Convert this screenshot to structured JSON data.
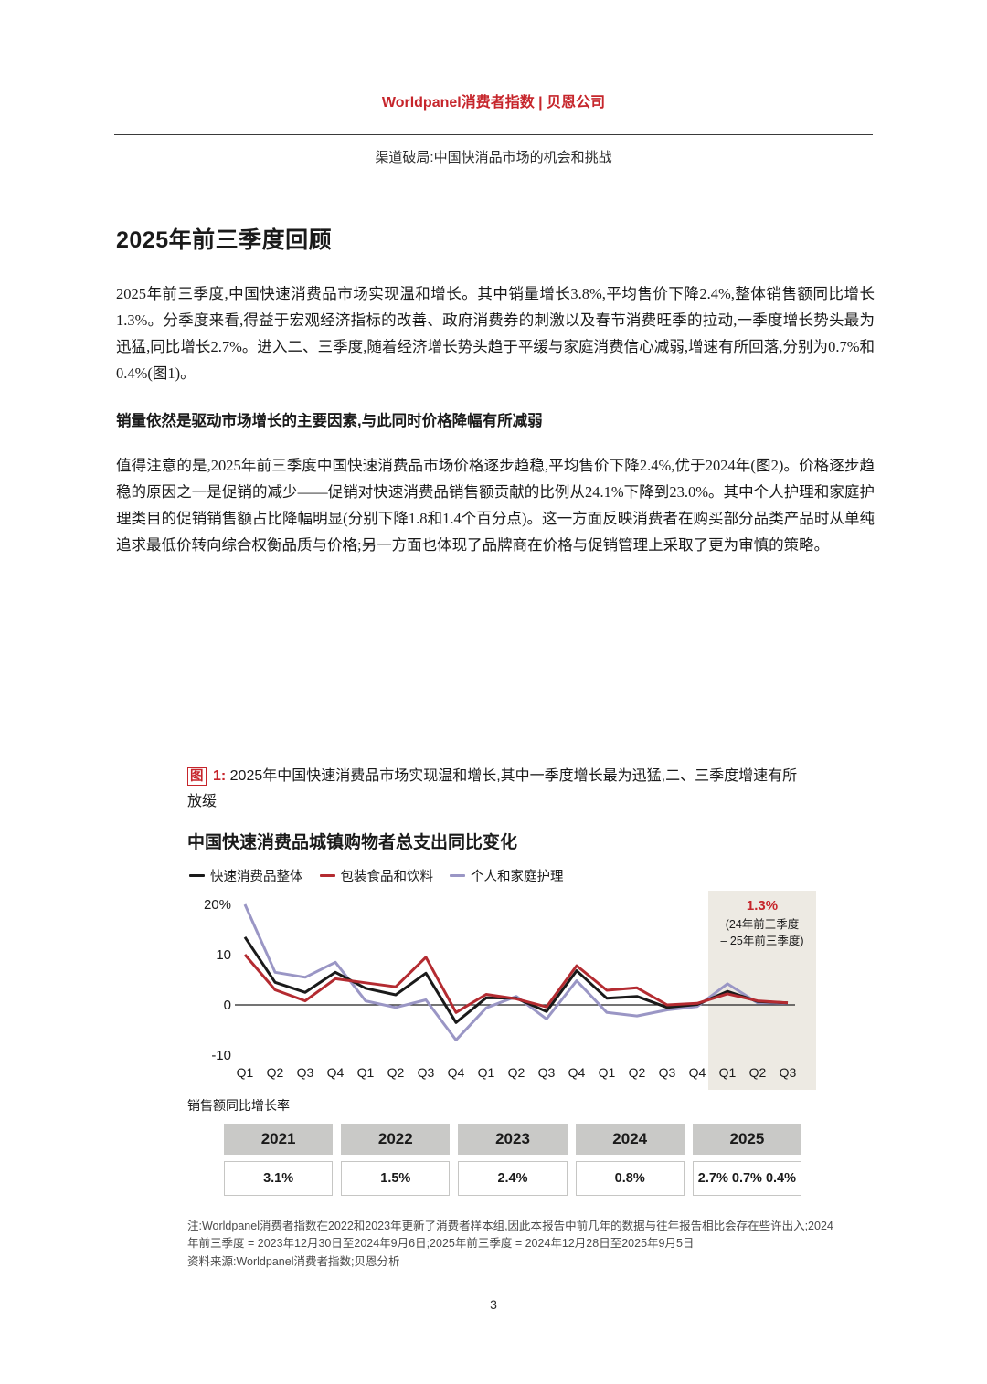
{
  "colors": {
    "brand_red": "#c6252b",
    "chart_black": "#1a1a1a",
    "chart_red": "#b42b31",
    "chart_purple": "#9a96c5",
    "highlight_band": "#edeae3",
    "table_header_bg": "#c9c9c7"
  },
  "page": {
    "header_title": "Worldpanel消费者指数 | 贝恩公司",
    "header_subtitle": "渠道破局:中国快消品市场的机会和挑战",
    "page_number": "3"
  },
  "section": {
    "title": "2025年前三季度回顾",
    "paragraph1": "2025年前三季度,中国快速消费品市场实现温和增长。其中销量增长3.8%,平均售价下降2.4%,整体销售额同比增长1.3%。分季度来看,得益于宏观经济指标的改善、政府消费券的刺激以及春节消费旺季的拉动,一季度增长势头最为迅猛,同比增长2.7%。进入二、三季度,随着经济增长势头趋于平缓与家庭消费信心减弱,增速有所回落,分别为0.7%和0.4%(图1)。",
    "subheading": "销量依然是驱动市场增长的主要因素,与此同时价格降幅有所减弱",
    "paragraph2": "值得注意的是,2025年前三季度中国快速消费品市场价格逐步趋稳,平均售价下降2.4%,优于2024年(图2)。价格逐步趋稳的原因之一是促销的减少——促销对快速消费品销售额贡献的比例从24.1%下降到23.0%。其中个人护理和家庭护理类目的促销销售额占比降幅明显(分别下降1.8和1.4个百分点)。这一方面反映消费者在购买部分品类产品时从单纯追求最低价转向综合权衡品质与价格;另一方面也体现了品牌商在价格与促销管理上采取了更为审慎的策略。"
  },
  "figure": {
    "label_box": "图",
    "label_num": "1:",
    "caption": "2025年中国快速消费品市场实现温和增长,其中一季度增长最为迅猛,二、三季度增速有所放缓",
    "sales_label": "销售额同比增长率",
    "table": {
      "years": [
        "2021",
        "2022",
        "2023",
        "2024",
        "2025"
      ],
      "values": [
        "3.1%",
        "1.5%",
        "2.4%",
        "0.8%",
        "2.7% 0.7% 0.4%"
      ]
    },
    "notes": [
      "注:Worldpanel消费者指数在2022和2023年更新了消费者样本组,因此本报告中前几年的数据与往年报告相比会存在些许出入;2024年前三季度 = 2023年12月30日至2024年9月6日;2025年前三季度 = 2024年12月28日至2025年9月5日",
      "资料来源:Worldpanel消费者指数;贝恩分析"
    ]
  },
  "chart_data": {
    "type": "line",
    "title": "中国快速消费品城镇购物者总支出同比变化",
    "x": [
      "Q1",
      "Q2",
      "Q3",
      "Q4",
      "Q1",
      "Q2",
      "Q3",
      "Q4",
      "Q1",
      "Q2",
      "Q3",
      "Q4",
      "Q1",
      "Q2",
      "Q3",
      "Q4",
      "Q1",
      "Q2",
      "Q3"
    ],
    "year_groups": [
      "2021",
      "2022",
      "2023",
      "2024",
      "2025"
    ],
    "ylabel": "%",
    "ylim": [
      -13,
      22
    ],
    "yticks": [
      {
        "v": 20,
        "label": "20%"
      },
      {
        "v": 10,
        "label": "10"
      },
      {
        "v": 0,
        "label": "0"
      },
      {
        "v": -10,
        "label": "-10"
      }
    ],
    "grid": false,
    "legend_position": "top-left",
    "series": [
      {
        "name": "快速消费品整体",
        "color": "#1a1a1a",
        "values": [
          13.5,
          4.5,
          2.5,
          6.5,
          3.3,
          2.0,
          6.3,
          -3.5,
          1.4,
          1.3,
          -1.3,
          6.8,
          1.3,
          1.7,
          -0.5,
          0.1,
          2.7,
          0.7,
          0.4
        ]
      },
      {
        "name": "包装食品和饮料",
        "color": "#b42b31",
        "values": [
          10.0,
          3.0,
          0.8,
          5.2,
          4.4,
          3.6,
          9.5,
          -1.5,
          2.1,
          1.2,
          -0.4,
          7.8,
          2.9,
          3.4,
          0.0,
          0.3,
          2.2,
          0.8,
          0.4
        ]
      },
      {
        "name": "个人和家庭护理",
        "color": "#9a96c5",
        "values": [
          20.0,
          6.5,
          5.5,
          8.5,
          0.8,
          -0.5,
          1.0,
          -7.0,
          -0.6,
          1.7,
          -2.8,
          4.8,
          -1.5,
          -2.2,
          -1.0,
          -0.3,
          4.2,
          0.4,
          0.3
        ]
      }
    ],
    "highlight_band": {
      "from_index": 16,
      "to_index": 18,
      "color": "#edeae3"
    },
    "annotation": {
      "value": "1.3%",
      "line1": "(24年前三季度",
      "line2": "– 25年前三季度)"
    }
  }
}
